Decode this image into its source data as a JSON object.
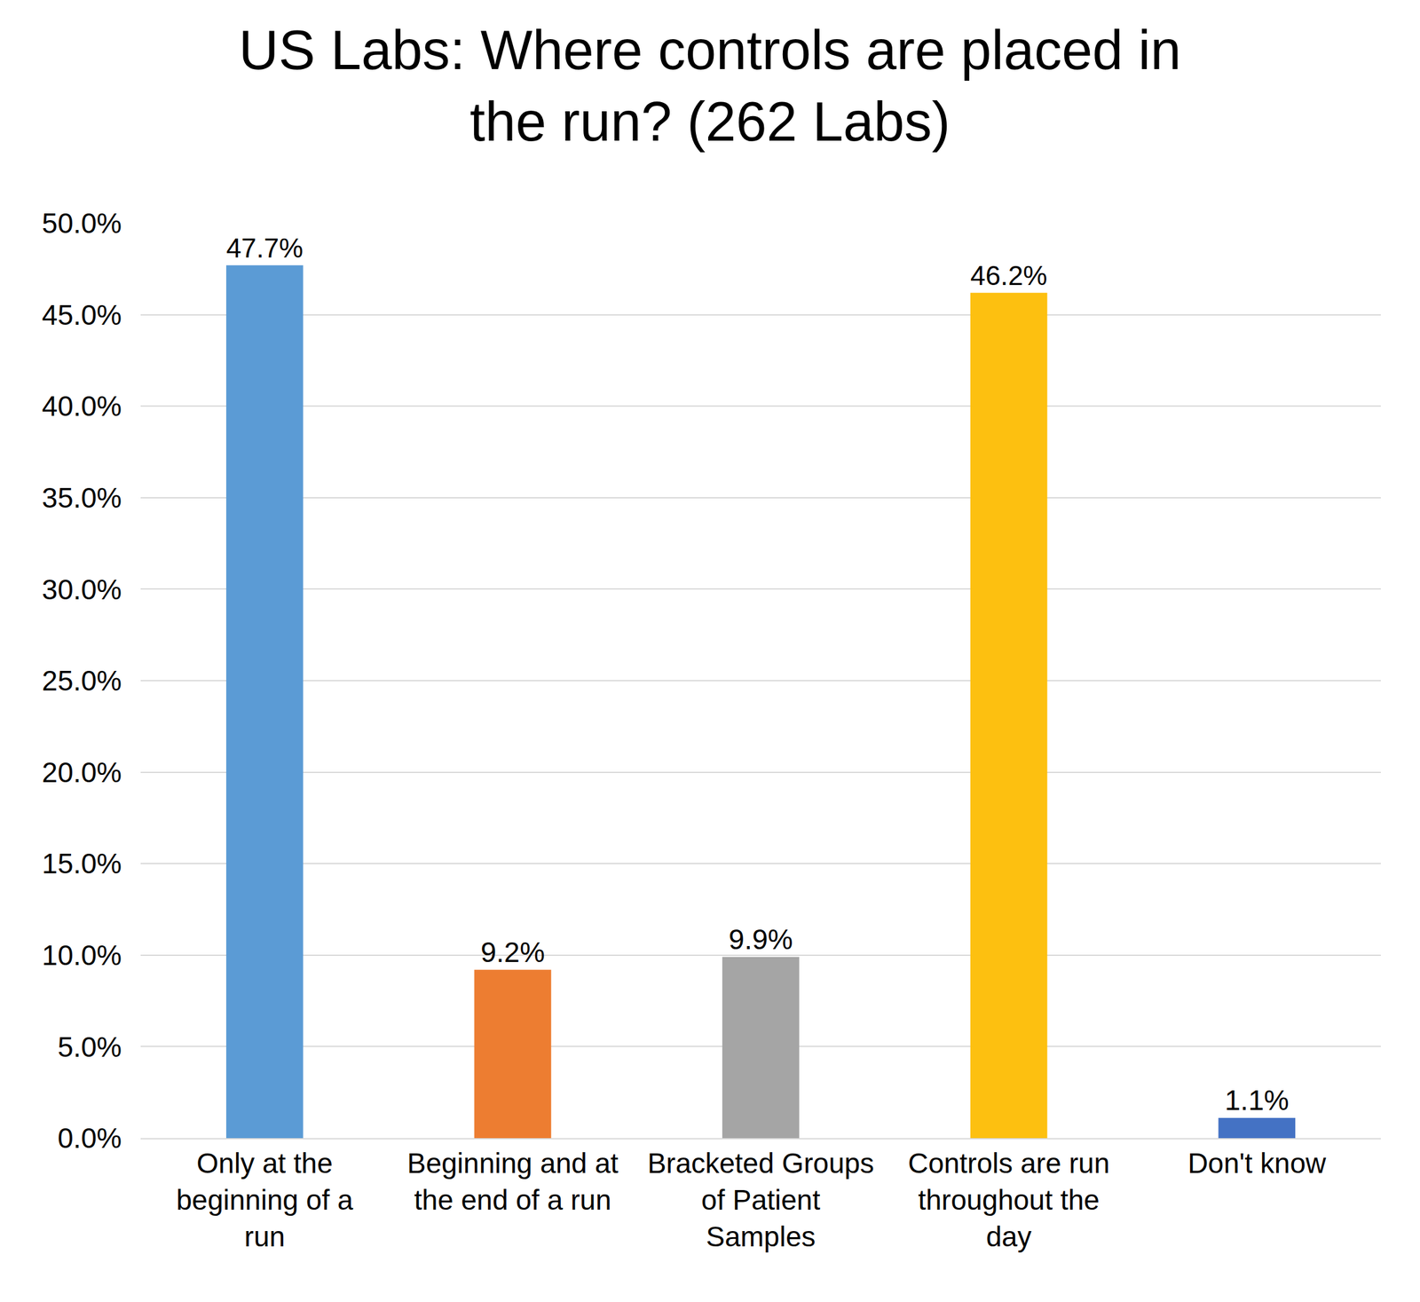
{
  "chart_data": {
    "type": "bar",
    "title": "US Labs: Where controls are placed in the run? (262 Labs)",
    "categories": [
      "Only at the beginning of a run",
      "Beginning and at the end of a run",
      "Bracketed Groups of Patient Samples",
      "Controls are run throughout the day",
      "Don't know"
    ],
    "values": [
      47.7,
      9.2,
      9.9,
      46.2,
      1.1
    ],
    "value_labels": [
      "47.7%",
      "9.2%",
      "9.9%",
      "46.2%",
      "1.1%"
    ],
    "colors": [
      "#5b9bd5",
      "#ed7d31",
      "#a5a5a5",
      "#fdc010",
      "#4472c4"
    ],
    "ylim": [
      0,
      50
    ],
    "yticks": [
      {
        "value": 0,
        "label": "0.0%"
      },
      {
        "value": 5,
        "label": "5.0%"
      },
      {
        "value": 10,
        "label": "10.0%"
      },
      {
        "value": 15,
        "label": "15.0%"
      },
      {
        "value": 20,
        "label": "20.0%"
      },
      {
        "value": 25,
        "label": "25.0%"
      },
      {
        "value": 30,
        "label": "30.0%"
      },
      {
        "value": 35,
        "label": "35.0%"
      },
      {
        "value": 40,
        "label": "40.0%"
      },
      {
        "value": 45,
        "label": "45.0%"
      },
      {
        "value": 50,
        "label": "50.0%"
      }
    ],
    "grid": true,
    "data_labels": true
  }
}
